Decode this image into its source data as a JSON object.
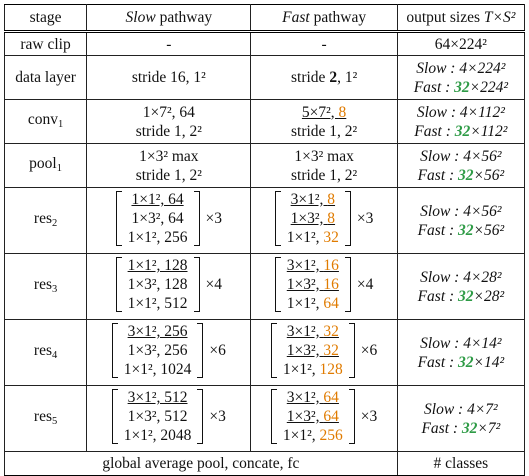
{
  "header": {
    "stage": "stage",
    "slow_italic": "Slow",
    "slow_rest": " pathway",
    "fast_italic": "Fast",
    "fast_rest": " pathway",
    "output_pre": "output sizes ",
    "output_formula": "T×S²"
  },
  "rows": {
    "raw": {
      "stage": "raw clip",
      "slow": "-",
      "fast": "-",
      "out": "64×224²"
    },
    "data": {
      "stage": "data layer",
      "slow": "stride 16, 1²",
      "fast_pre": "stride ",
      "fast_bold": "2",
      "fast_post": ", 1²",
      "out_slow": "Slow : 4×224²",
      "out_fast_pre": "Fast : ",
      "out_fast_g": "32",
      "out_fast_post": "×224²"
    },
    "conv1": {
      "stage": "conv",
      "stage_sub": "1",
      "slow1": "1×7², 64",
      "slow2": "stride 1, 2²",
      "fast1a": "5×7², ",
      "fast1b": "8",
      "fast2": "stride 1, 2²",
      "out_slow": "Slow : 4×112²",
      "out_fast_pre": "Fast : ",
      "out_fast_g": "32",
      "out_fast_post": "×112²"
    },
    "pool1": {
      "stage": "pool",
      "stage_sub": "1",
      "slow1": "1×3² max",
      "slow2": "stride 1, 2²",
      "fast1": "1×3² max",
      "fast2": "stride 1, 2²",
      "out_slow": "Slow : 4×56²",
      "out_fast_pre": "Fast : ",
      "out_fast_g": "32",
      "out_fast_post": "×56²"
    },
    "res2": {
      "stage": "res",
      "stage_sub": "2",
      "slow": [
        "1×1², 64",
        "1×3², 64",
        "1×1², 256"
      ],
      "slow_mult": "×3",
      "fast": [
        [
          "3×1², ",
          "8"
        ],
        [
          "1×3², ",
          "8"
        ],
        [
          "1×1², ",
          "32"
        ]
      ],
      "fast_mult": "×3",
      "out_slow": "Slow : 4×56²",
      "out_fast_pre": "Fast : ",
      "out_fast_g": "32",
      "out_fast_post": "×56²"
    },
    "res3": {
      "stage": "res",
      "stage_sub": "3",
      "slow": [
        "1×1², 128",
        "1×3², 128",
        "1×1², 512"
      ],
      "slow_mult": "×4",
      "fast": [
        [
          "3×1², ",
          "16"
        ],
        [
          "1×3², ",
          "16"
        ],
        [
          "1×1², ",
          "64"
        ]
      ],
      "fast_mult": "×4",
      "out_slow": "Slow : 4×28²",
      "out_fast_pre": "Fast : ",
      "out_fast_g": "32",
      "out_fast_post": "×28²"
    },
    "res4": {
      "stage": "res",
      "stage_sub": "4",
      "slow": [
        "3×1², 256",
        "1×3², 256",
        "1×1², 1024"
      ],
      "slow_mult": "×6",
      "fast": [
        [
          "3×1², ",
          "32"
        ],
        [
          "1×3², ",
          "32"
        ],
        [
          "1×1², ",
          "128"
        ]
      ],
      "fast_mult": "×6",
      "out_slow": "Slow : 4×14²",
      "out_fast_pre": "Fast : ",
      "out_fast_g": "32",
      "out_fast_post": "×14²"
    },
    "res5": {
      "stage": "res",
      "stage_sub": "5",
      "slow": [
        "3×1², 512",
        "1×3², 512",
        "1×1², 2048"
      ],
      "slow_mult": "×3",
      "fast": [
        [
          "3×1², ",
          "64"
        ],
        [
          "1×3², ",
          "64"
        ],
        [
          "1×1², ",
          "256"
        ]
      ],
      "fast_mult": "×3",
      "out_slow": "Slow : 4×7²",
      "out_fast_pre": "Fast : ",
      "out_fast_g": "32",
      "out_fast_post": "×7²"
    }
  },
  "footer": {
    "left": "global average pool, concate, fc",
    "right": "# classes"
  }
}
